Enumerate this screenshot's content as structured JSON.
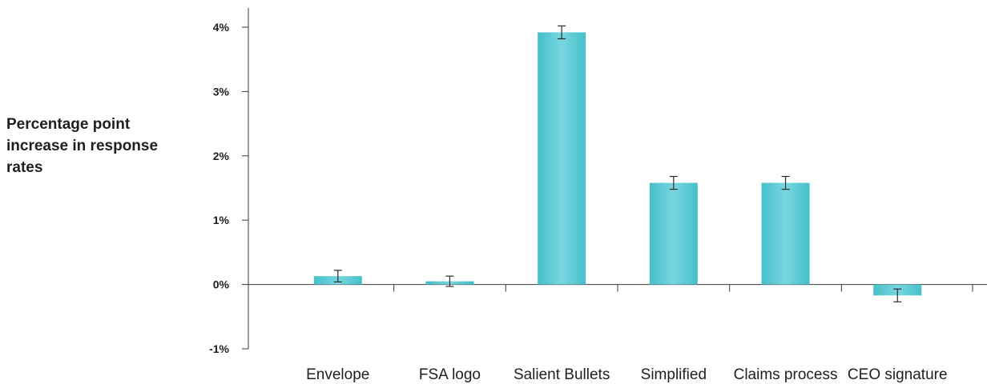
{
  "chart_data": {
    "type": "bar",
    "ylabel": "Percentage point\nincrease in response\nrates",
    "xlabel": "",
    "title": "",
    "categories": [
      "Envelope",
      "FSA logo",
      "Salient Bullets",
      "Simplified",
      "Claims process",
      "CEO signature"
    ],
    "values": [
      0.13,
      0.05,
      3.92,
      1.58,
      1.58,
      -0.17
    ],
    "error": [
      0.09,
      0.08,
      0.1,
      0.1,
      0.1,
      0.1
    ],
    "ylim": [
      -1,
      4
    ],
    "yticks": [
      -1,
      0,
      1,
      2,
      3,
      4
    ],
    "ytick_labels": [
      "-1%",
      "0%",
      "1%",
      "2%",
      "3%",
      "4%"
    ],
    "bar_color": "#5ccbd6",
    "grid": false,
    "legend": "none"
  }
}
